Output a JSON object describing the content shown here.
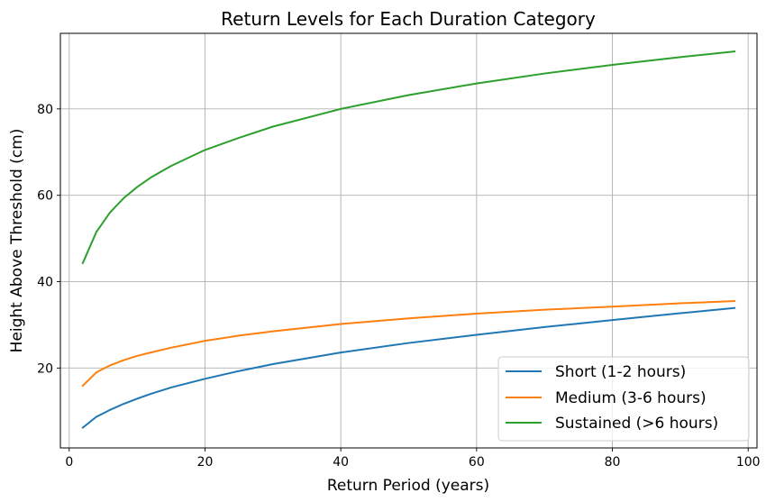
{
  "chart_data": {
    "type": "line",
    "title": "Return Levels for Each Duration Category",
    "xlabel": "Return Period (years)",
    "ylabel": "Height Above Threshold (cm)",
    "xlim": [
      -1.3,
      101.3
    ],
    "ylim": [
      1.5,
      97.5
    ],
    "xticks": [
      0,
      20,
      40,
      60,
      80,
      100
    ],
    "yticks": [
      20,
      40,
      60,
      80
    ],
    "grid": true,
    "legend_position": "lower-right",
    "series": [
      {
        "name": "Short (1-2 hours)",
        "color": "#1f77b4",
        "x": [
          2,
          4,
          6,
          8,
          10,
          12,
          15,
          20,
          25,
          30,
          40,
          50,
          60,
          70,
          80,
          90,
          98
        ],
        "y": [
          6.2,
          8.7,
          10.3,
          11.7,
          12.9,
          14.0,
          15.5,
          17.5,
          19.3,
          20.9,
          23.6,
          25.8,
          27.7,
          29.5,
          31.1,
          32.7,
          33.9
        ]
      },
      {
        "name": "Medium (3-6 hours)",
        "color": "#ff7f0e",
        "x": [
          2,
          4,
          6,
          8,
          10,
          12,
          15,
          20,
          25,
          30,
          40,
          50,
          60,
          70,
          80,
          90,
          98
        ],
        "y": [
          15.9,
          19.0,
          20.6,
          21.8,
          22.8,
          23.6,
          24.7,
          26.3,
          27.5,
          28.5,
          30.2,
          31.5,
          32.6,
          33.5,
          34.2,
          35.0,
          35.5
        ]
      },
      {
        "name": "Sustained (>6 hours)",
        "color": "#2ca02c",
        "x": [
          2,
          4,
          6,
          8,
          10,
          12,
          15,
          20,
          25,
          30,
          40,
          50,
          60,
          70,
          80,
          90,
          98
        ],
        "y": [
          44.3,
          51.5,
          56.0,
          59.3,
          61.9,
          64.1,
          66.8,
          70.5,
          73.3,
          75.9,
          80.0,
          83.2,
          85.9,
          88.2,
          90.2,
          92.0,
          93.3
        ]
      }
    ]
  }
}
